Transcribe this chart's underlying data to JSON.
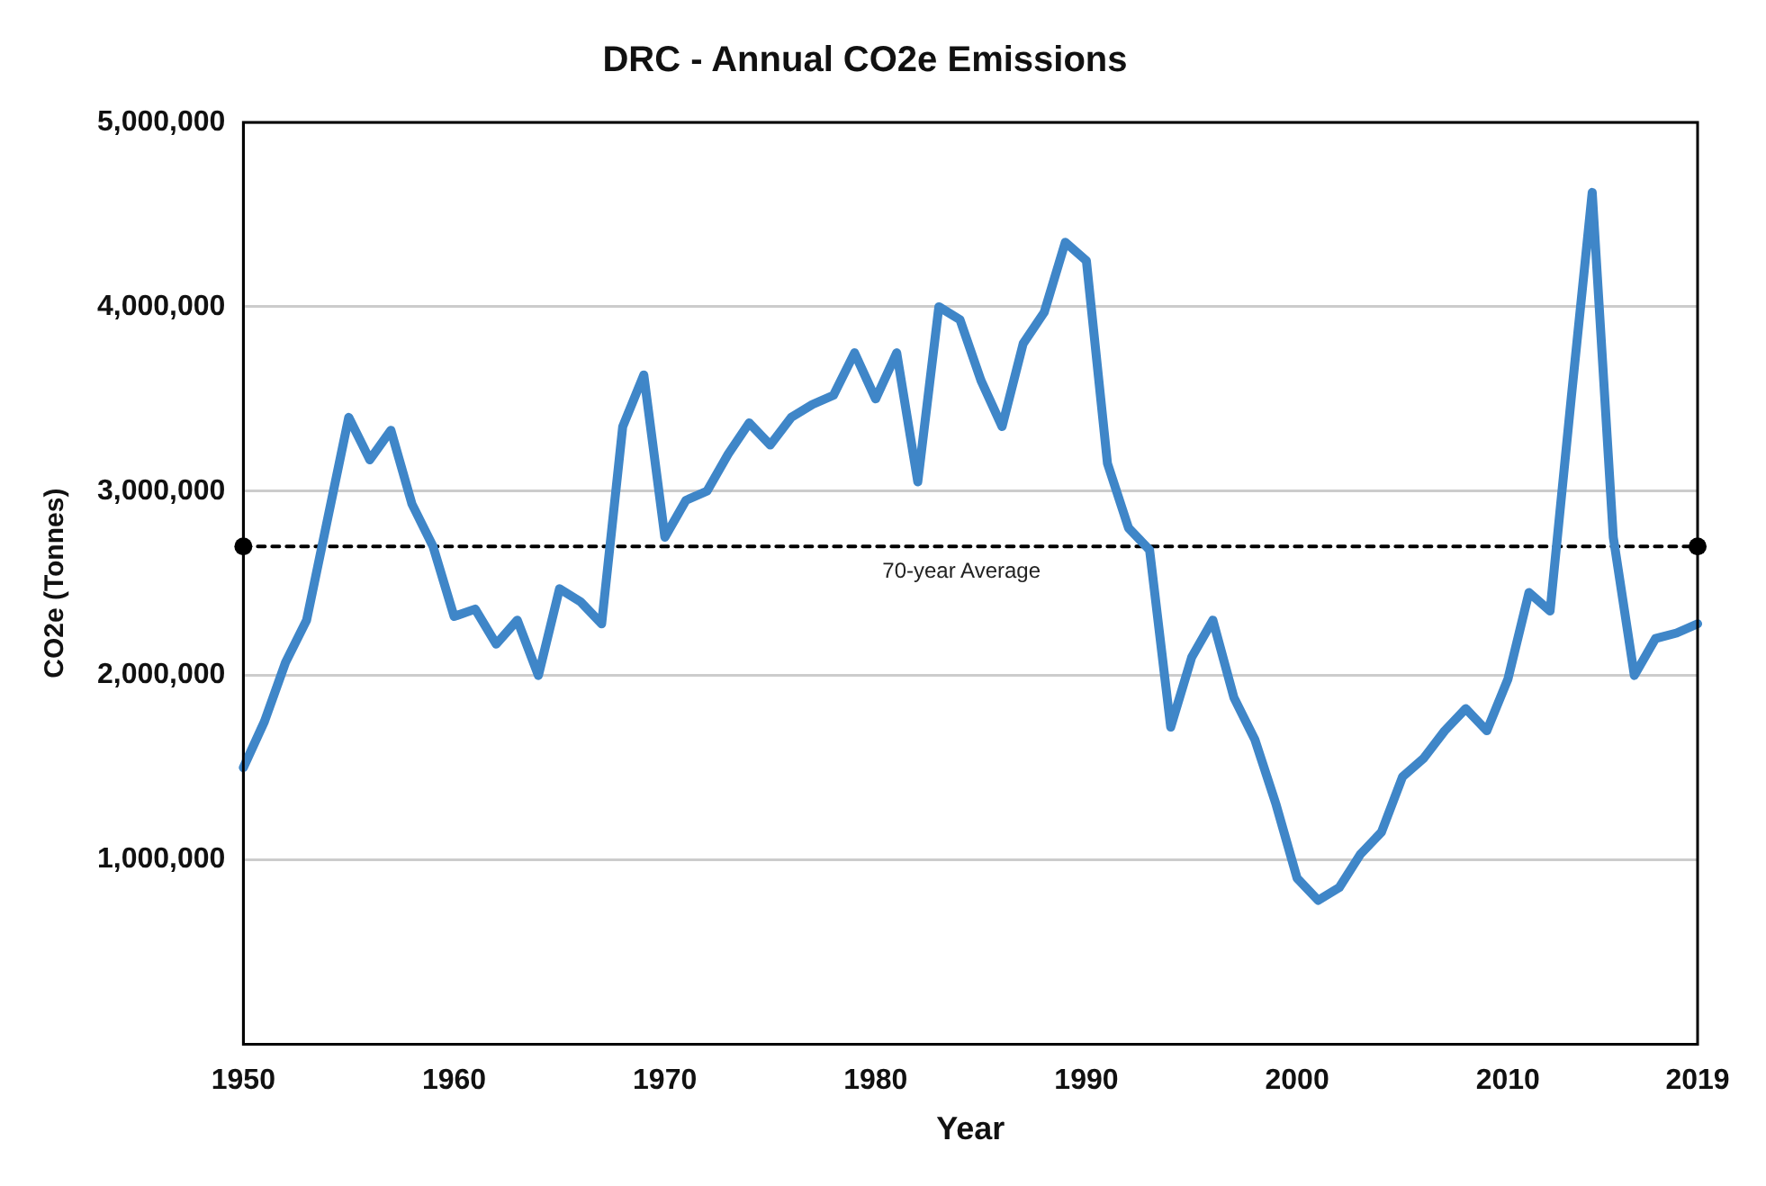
{
  "chart_data": {
    "type": "line",
    "title": "DRC - Annual CO2e Emissions",
    "xlabel": "Year",
    "ylabel": "CO2e (Tonnes)",
    "x": [
      1950,
      1951,
      1952,
      1953,
      1954,
      1955,
      1956,
      1957,
      1958,
      1959,
      1960,
      1961,
      1962,
      1963,
      1964,
      1965,
      1966,
      1967,
      1968,
      1969,
      1970,
      1971,
      1972,
      1973,
      1974,
      1975,
      1976,
      1977,
      1978,
      1979,
      1980,
      1981,
      1982,
      1983,
      1984,
      1985,
      1986,
      1987,
      1988,
      1989,
      1990,
      1991,
      1992,
      1993,
      1994,
      1995,
      1996,
      1997,
      1998,
      1999,
      2000,
      2001,
      2002,
      2003,
      2004,
      2005,
      2006,
      2007,
      2008,
      2009,
      2010,
      2011,
      2012,
      2013,
      2014,
      2015,
      2016,
      2017,
      2018,
      2019
    ],
    "series": [
      {
        "color": "#3f86c8",
        "values": [
          1500000,
          1750000,
          2070000,
          2300000,
          2850000,
          3400000,
          3170000,
          3330000,
          2930000,
          2700000,
          2320000,
          2360000,
          2170000,
          2300000,
          2000000,
          2470000,
          2400000,
          2280000,
          3350000,
          3630000,
          2750000,
          2950000,
          3000000,
          3200000,
          3370000,
          3250000,
          3400000,
          3470000,
          3520000,
          3750000,
          3500000,
          3750000,
          3050000,
          4000000,
          3930000,
          3600000,
          3350000,
          3800000,
          3970000,
          4350000,
          4250000,
          3150000,
          2800000,
          2680000,
          1720000,
          2100000,
          2300000,
          1880000,
          1650000,
          1300000,
          900000,
          780000,
          850000,
          1030000,
          1150000,
          1450000,
          1550000,
          1700000,
          1820000,
          1700000,
          1980000,
          2450000,
          2350000,
          3500000,
          4620000,
          2750000,
          2000000,
          2200000,
          2230000,
          2280000
        ]
      },
      {
        "type": "line",
        "name": "70-year Average",
        "color": "#000000",
        "x": [
          1950,
          2019
        ],
        "values": [
          2700000,
          2700000
        ],
        "line_style": "dashed",
        "marker": "circle"
      }
    ],
    "xlim": [
      1950,
      2019
    ],
    "xticks": [
      1950,
      1960,
      1970,
      1980,
      1990,
      2000,
      2010,
      2019
    ],
    "ylim": [
      0,
      5000000
    ],
    "yticks": [
      {
        "value": 1000000,
        "label": "1,000,000"
      },
      {
        "value": 2000000,
        "label": "2,000,000"
      },
      {
        "value": 3000000,
        "label": "3,000,000"
      },
      {
        "value": 4000000,
        "label": "4,000,000"
      },
      {
        "value": 5000000,
        "label": "5,000,000"
      }
    ],
    "grid": "y",
    "legend": false,
    "marker": "none",
    "line_style": "solid"
  }
}
